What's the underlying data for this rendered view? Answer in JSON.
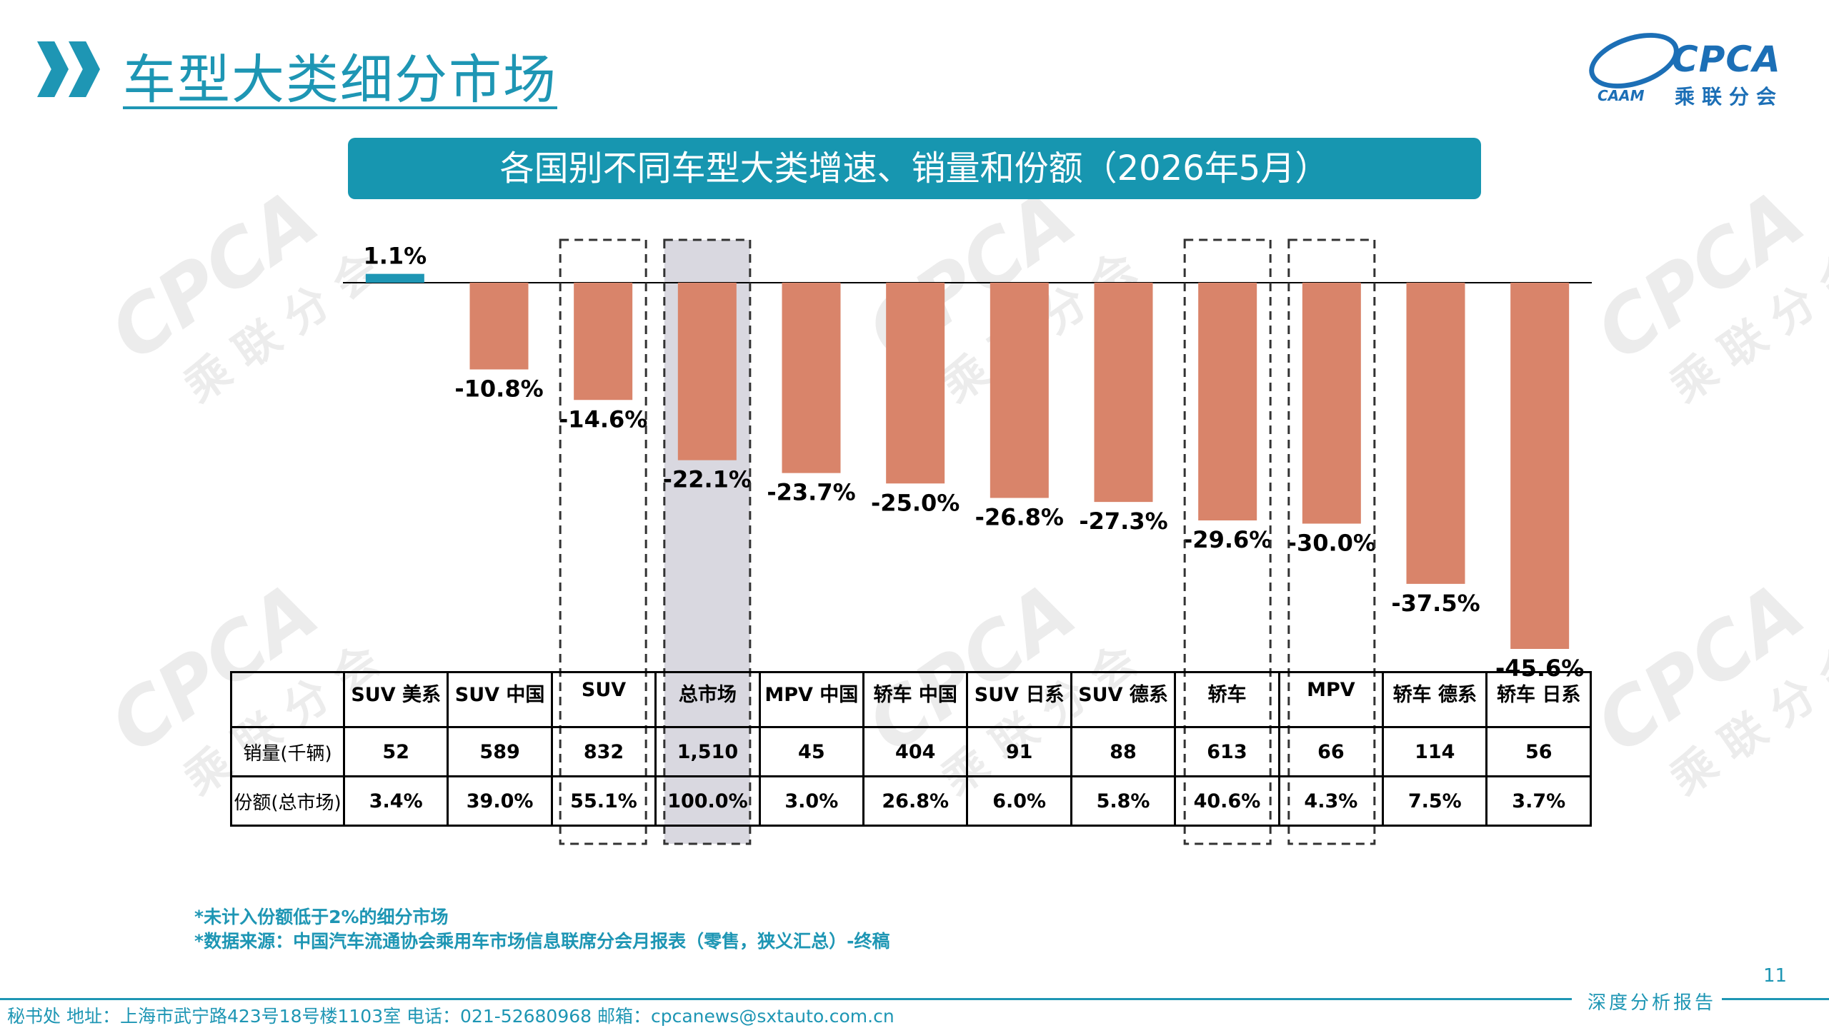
{
  "header": {
    "title": "车型大类细分市场",
    "logo_text": "CPCA",
    "logo_cn": "乘联分会",
    "logo_sub": "CAAM"
  },
  "watermark": {
    "text": "CPCA",
    "cn": "乘联分会"
  },
  "chart_data": {
    "type": "bar",
    "title": "各国别不同车型大类增速、销量和份额（2026年5月）",
    "categories": [
      "SUV 美系",
      "SUV 中国",
      "SUV",
      "总市场",
      "MPV 中国",
      "轿车 中国",
      "SUV 日系",
      "SUV 德系",
      "轿车",
      "MPV",
      "轿车 德系",
      "轿车 日系"
    ],
    "values": [
      1.1,
      -10.8,
      -14.6,
      -22.1,
      -23.7,
      -25.0,
      -26.8,
      -27.3,
      -29.6,
      -30.0,
      -37.5,
      -45.6
    ],
    "value_labels": [
      "1.1%",
      "-10.8%",
      "-14.6%",
      "-22.1%",
      "-23.7%",
      "-25.0%",
      "-26.8%",
      "-27.3%",
      "-29.6%",
      "-30.0%",
      "-37.5%",
      "-45.6%"
    ],
    "unit": "%",
    "ylim": [
      -47,
      2
    ],
    "colors": {
      "positive": "#1e96b4",
      "negative": "#d9846a",
      "total_highlight": "#d9d8e0"
    },
    "highlight": {
      "shaded": [
        "总市场"
      ],
      "dashed": [
        "SUV",
        "总市场",
        "轿车",
        "MPV"
      ]
    },
    "table": {
      "rows": [
        {
          "label": "销量(千辆)",
          "values": [
            "52",
            "589",
            "832",
            "1,510",
            "45",
            "404",
            "91",
            "88",
            "613",
            "66",
            "114",
            "56"
          ]
        },
        {
          "label": "份额(总市场)",
          "values": [
            "3.4%",
            "39.0%",
            "55.1%",
            "100.0%",
            "3.0%",
            "26.8%",
            "6.0%",
            "5.8%",
            "40.6%",
            "4.3%",
            "7.5%",
            "3.7%"
          ]
        }
      ]
    }
  },
  "notes": [
    "*未计入份额低于2%的细分市场",
    "*数据来源：中国汽车流通协会乘用车市场信息联席分会月报表（零售，狭义汇总）-终稿"
  ],
  "footer": {
    "page_number": "11",
    "tag": "深度分析报告",
    "contact": "秘书处   地址：上海市武宁路423号18号楼1103室   电话：021-52680968   邮箱：cpcanews@sxtauto.com.cn"
  }
}
